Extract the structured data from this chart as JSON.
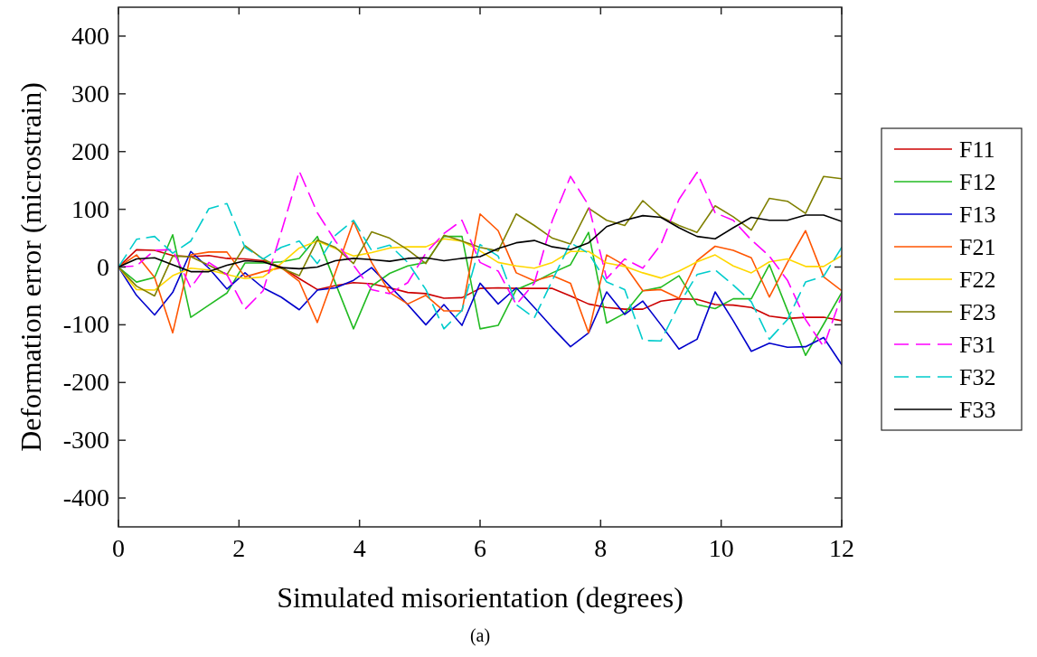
{
  "chart_data": {
    "type": "line",
    "xlabel": "Simulated misorientation (degrees)",
    "ylabel": "Deformation error (microstrain)",
    "x": [
      0,
      0.3,
      0.6,
      0.9,
      1.2,
      1.5,
      1.8,
      2.1,
      2.4,
      2.7,
      3,
      3.3,
      3.6,
      3.9,
      4.2,
      4.5,
      4.8,
      5.1,
      5.4,
      5.7,
      6,
      6.3,
      6.6,
      6.9,
      7.2,
      7.5,
      7.8,
      8.1,
      8.4,
      8.7,
      9,
      9.3,
      9.6,
      9.9,
      10.2,
      10.5,
      10.8,
      11.1,
      11.4,
      11.7,
      12
    ],
    "xlim": [
      0,
      12
    ],
    "xticks": [
      0,
      2,
      4,
      6,
      8,
      10,
      12
    ],
    "ylim": [
      -450,
      450
    ],
    "yticks": [
      -400,
      -300,
      -200,
      -100,
      0,
      100,
      200,
      300,
      400
    ],
    "grid": false,
    "legend": "right",
    "annotations": [
      "(a)"
    ],
    "series": [
      {
        "name": "F11",
        "color": "#cc0000",
        "line_style": "solid",
        "values": [
          0,
          30,
          29,
          20,
          18,
          20,
          15,
          14,
          11,
          0,
          -20,
          -39,
          -32,
          -27,
          -29,
          -36,
          -44,
          -46,
          -54,
          -53,
          -37,
          -36,
          -37,
          -37,
          -37,
          -50,
          -64,
          -70,
          -73,
          -73,
          -59,
          -55,
          -56,
          -65,
          -66,
          -70,
          -85,
          -89,
          -87,
          -87,
          -93
        ]
      },
      {
        "name": "F12",
        "color": "#22bb22",
        "line_style": "solid",
        "values": [
          0,
          -26,
          -18,
          56,
          -87,
          -66,
          -45,
          7,
          7,
          9,
          15,
          53,
          -28,
          -107,
          -33,
          -11,
          2,
          8,
          53,
          53,
          -107,
          -101,
          -39,
          -26,
          -10,
          4,
          60,
          -97,
          -80,
          -41,
          -35,
          -15,
          -65,
          -72,
          -55,
          -55,
          4,
          -75,
          -153,
          -99,
          -44
        ]
      },
      {
        "name": "F13",
        "color": "#0000cc",
        "line_style": "solid",
        "values": [
          0,
          -49,
          -83,
          -44,
          27,
          -2,
          -38,
          -10,
          -36,
          -52,
          -74,
          -40,
          -36,
          -23,
          -1,
          -33,
          -65,
          -100,
          -65,
          -101,
          -28,
          -64,
          -36,
          -70,
          -105,
          -138,
          -114,
          -43,
          -82,
          -59,
          -100,
          -142,
          -125,
          -43,
          -93,
          -146,
          -132,
          -139,
          -138,
          -122,
          -169
        ]
      },
      {
        "name": "F21",
        "color": "#ff5500",
        "line_style": "solid",
        "values": [
          0,
          21,
          -18,
          -114,
          21,
          26,
          26,
          -17,
          -8,
          -1,
          -25,
          -96,
          -9,
          79,
          8,
          -44,
          -64,
          -49,
          -76,
          -76,
          92,
          63,
          -10,
          -24,
          -15,
          -28,
          -114,
          21,
          3,
          -41,
          -39,
          -54,
          11,
          36,
          29,
          16,
          -52,
          8,
          63,
          -17,
          -41
        ]
      },
      {
        "name": "F22",
        "color": "#ffd700",
        "line_style": "solid",
        "values": [
          0,
          -39,
          -40,
          -15,
          -2,
          -5,
          -13,
          -20,
          -17,
          6,
          33,
          45,
          32,
          19,
          25,
          33,
          35,
          35,
          49,
          45,
          28,
          8,
          2,
          -2,
          8,
          27,
          27,
          7,
          1,
          -10,
          -19,
          -7,
          9,
          21,
          2,
          -10,
          9,
          14,
          1,
          1,
          20
        ]
      },
      {
        "name": "F23",
        "color": "#808000",
        "line_style": "solid",
        "values": [
          0,
          -33,
          -50,
          19,
          18,
          3,
          -13,
          37,
          14,
          -2,
          -15,
          47,
          34,
          6,
          61,
          50,
          30,
          6,
          55,
          45,
          34,
          28,
          92,
          72,
          50,
          40,
          102,
          81,
          72,
          115,
          87,
          72,
          60,
          106,
          87,
          64,
          119,
          114,
          93,
          157,
          153
        ]
      },
      {
        "name": "F31",
        "color": "#ff00ff",
        "line_style": "dashed",
        "values": [
          0,
          2,
          29,
          30,
          -36,
          8,
          -13,
          -73,
          -41,
          60,
          166,
          94,
          45,
          3,
          -39,
          -46,
          -27,
          24,
          58,
          81,
          8,
          -7,
          -65,
          -28,
          81,
          157,
          107,
          -20,
          14,
          -2,
          39,
          117,
          164,
          94,
          81,
          47,
          19,
          -23,
          -91,
          -138,
          -49
        ]
      },
      {
        "name": "F32",
        "color": "#00cccc",
        "line_style": "dashed",
        "values": [
          0,
          48,
          53,
          24,
          45,
          101,
          110,
          34,
          14,
          34,
          45,
          6,
          55,
          81,
          29,
          38,
          8,
          -39,
          -107,
          -75,
          39,
          19,
          -65,
          -88,
          -23,
          42,
          24,
          -26,
          -39,
          -127,
          -128,
          -65,
          -13,
          -5,
          -31,
          -60,
          -125,
          -91,
          -26,
          -16,
          34
        ]
      },
      {
        "name": "F33",
        "color": "#000000",
        "line_style": "solid",
        "values": [
          0,
          14,
          16,
          4,
          -8,
          -8,
          3,
          11,
          9,
          -1,
          -3,
          0,
          11,
          15,
          13,
          10,
          15,
          16,
          11,
          15,
          18,
          32,
          42,
          46,
          35,
          30,
          42,
          70,
          81,
          89,
          86,
          68,
          53,
          49,
          68,
          86,
          81,
          81,
          90,
          90,
          79
        ]
      }
    ]
  }
}
